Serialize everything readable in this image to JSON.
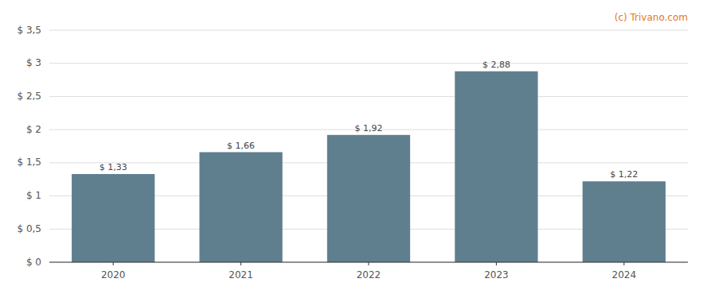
{
  "chart_data": {
    "type": "bar",
    "categories": [
      "2020",
      "2021",
      "2022",
      "2023",
      "2024"
    ],
    "values": [
      1.33,
      1.66,
      1.92,
      2.88,
      1.22
    ],
    "value_labels": [
      "$ 1,33",
      "$ 1,66",
      "$ 1,92",
      "$ 2,88",
      "$ 1,22"
    ],
    "color": "#5f7f8f",
    "ylim": [
      0,
      3.5
    ],
    "yticks": [
      {
        "value": 0,
        "label": "$ 0"
      },
      {
        "value": 0.5,
        "label": "$ 0,5"
      },
      {
        "value": 1.0,
        "label": "$ 1"
      },
      {
        "value": 1.5,
        "label": "$ 1,5"
      },
      {
        "value": 2.0,
        "label": "$ 2"
      },
      {
        "value": 2.5,
        "label": "$ 2,5"
      },
      {
        "value": 3.0,
        "label": "$ 3"
      },
      {
        "value": 3.5,
        "label": "$ 3,5"
      }
    ],
    "grid": true,
    "data_labels": true,
    "annotations": [
      {
        "text": "(c) Trivano.com",
        "color": "#e07828"
      }
    ]
  }
}
